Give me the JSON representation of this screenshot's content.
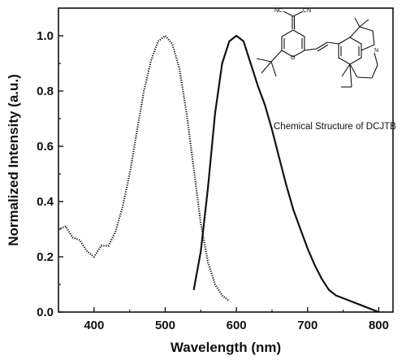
{
  "chart_data": {
    "type": "line",
    "xlabel": "Wavelength (nm)",
    "ylabel": "Normalized Intensity (a.u.)",
    "xlim": [
      350,
      820
    ],
    "ylim": [
      0,
      1.1
    ],
    "x_ticks": [
      400,
      500,
      600,
      700,
      800
    ],
    "x_tick_labels": [
      "400",
      "500",
      "600",
      "700",
      "800"
    ],
    "y_ticks": [
      0,
      0.2,
      0.4,
      0.6,
      0.8,
      1.0
    ],
    "y_tick_labels": [
      "0.0",
      "0.2",
      "0.4",
      "0.6",
      "0.8",
      "1.0"
    ],
    "grid": false,
    "legend": "none",
    "series": [
      {
        "style": "dotted",
        "x": [
          350,
          360,
          370,
          380,
          390,
          400,
          410,
          420,
          430,
          440,
          450,
          460,
          470,
          480,
          490,
          500,
          510,
          520,
          530,
          540,
          550,
          560,
          570,
          580,
          590
        ],
        "y": [
          0.3,
          0.31,
          0.27,
          0.26,
          0.22,
          0.2,
          0.24,
          0.24,
          0.29,
          0.38,
          0.5,
          0.65,
          0.8,
          0.91,
          0.98,
          1.0,
          0.97,
          0.88,
          0.72,
          0.52,
          0.32,
          0.18,
          0.1,
          0.06,
          0.04
        ]
      },
      {
        "style": "solid",
        "x": [
          540,
          550,
          560,
          570,
          580,
          590,
          600,
          610,
          620,
          630,
          640,
          650,
          660,
          670,
          680,
          690,
          700,
          710,
          720,
          730,
          740,
          750,
          760,
          770,
          780,
          790,
          800
        ],
        "y": [
          0.08,
          0.22,
          0.45,
          0.72,
          0.9,
          0.98,
          1.0,
          0.98,
          0.9,
          0.82,
          0.75,
          0.66,
          0.56,
          0.46,
          0.37,
          0.3,
          0.23,
          0.17,
          0.12,
          0.08,
          0.06,
          0.05,
          0.04,
          0.03,
          0.02,
          0.01,
          0.0
        ]
      }
    ]
  },
  "structure": {
    "caption": "Chemical Structure of DCJTB",
    "atoms": {
      "nc_left": "NC",
      "cn_right": "CN",
      "o": "O",
      "n": "N"
    }
  }
}
